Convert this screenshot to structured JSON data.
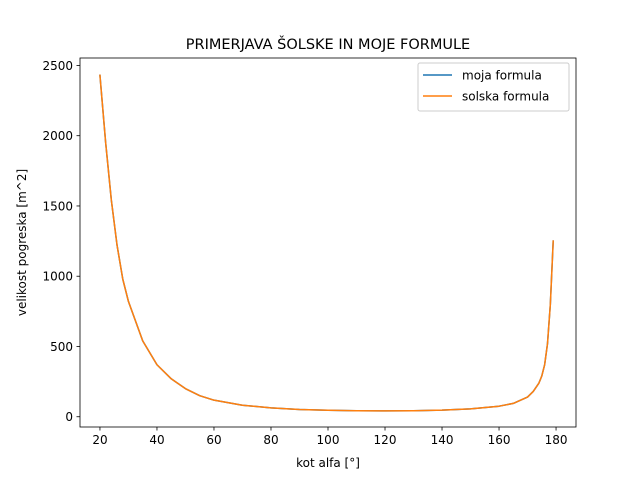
{
  "chart_data": {
    "type": "line",
    "title": "PRIMERJAVA ŠOLSKE IN MOJE FORMULE",
    "xlabel": "kot alfa [°]",
    "ylabel": "velikost pogreska [m^2]",
    "xlim": [
      13,
      187
    ],
    "ylim": [
      -73,
      2553
    ],
    "xticks": [
      20,
      40,
      60,
      80,
      100,
      120,
      140,
      160,
      180
    ],
    "yticks": [
      0,
      500,
      1000,
      1500,
      2000,
      2500
    ],
    "grid": false,
    "legend_position": "top-right",
    "series": [
      {
        "name": "moja formula",
        "color": "#1f77b4",
        "x": [
          20,
          22,
          24,
          26,
          28,
          30,
          35,
          40,
          45,
          50,
          55,
          60,
          70,
          80,
          90,
          100,
          110,
          120,
          130,
          140,
          150,
          160,
          165,
          170,
          172,
          174,
          175,
          176,
          177,
          178,
          179
        ],
        "y": [
          2430,
          1950,
          1540,
          1220,
          980,
          820,
          540,
          370,
          270,
          200,
          150,
          118,
          82,
          63,
          52,
          46,
          43,
          42,
          43,
          47,
          56,
          75,
          95,
          140,
          180,
          240,
          290,
          370,
          520,
          800,
          1250
        ]
      },
      {
        "name": "solska formula",
        "color": "#ff7f0e",
        "x": [
          20,
          22,
          24,
          26,
          28,
          30,
          35,
          40,
          45,
          50,
          55,
          60,
          70,
          80,
          90,
          100,
          110,
          120,
          130,
          140,
          150,
          160,
          165,
          170,
          172,
          174,
          175,
          176,
          177,
          178,
          179
        ],
        "y": [
          2430,
          1950,
          1540,
          1220,
          980,
          820,
          540,
          370,
          270,
          200,
          150,
          118,
          82,
          63,
          52,
          46,
          43,
          42,
          43,
          47,
          56,
          75,
          95,
          140,
          180,
          240,
          290,
          370,
          520,
          800,
          1250
        ]
      }
    ]
  }
}
